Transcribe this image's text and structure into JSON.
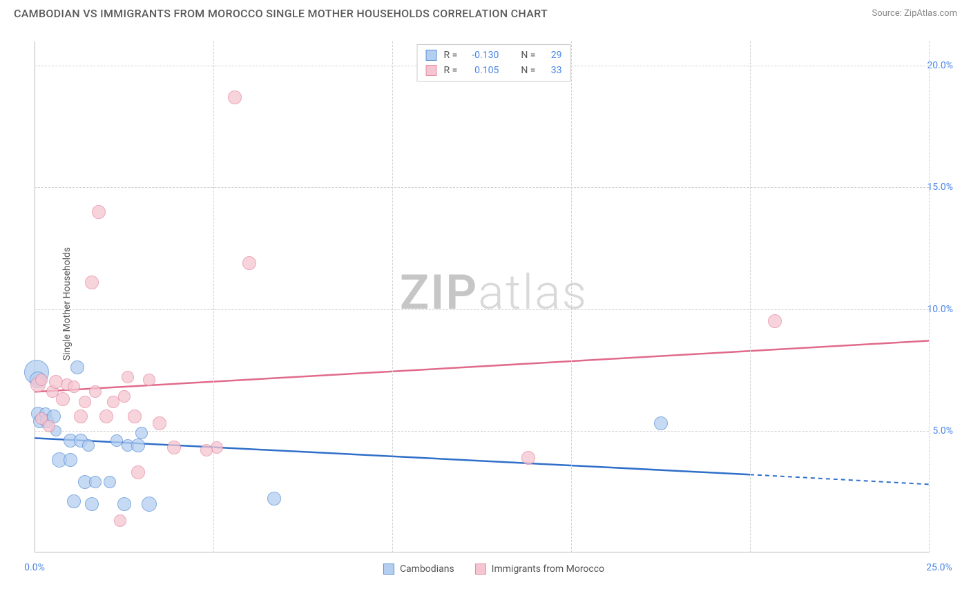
{
  "title": "CAMBODIAN VS IMMIGRANTS FROM MOROCCO SINGLE MOTHER HOUSEHOLDS CORRELATION CHART",
  "source": "Source: ZipAtlas.com",
  "watermark_zip": "ZIP",
  "watermark_atlas": "atlas",
  "y_axis_label": "Single Mother Households",
  "chart": {
    "type": "scatter",
    "background_color": "#ffffff",
    "grid_color": "#d0d0d0",
    "axis_color": "#bbbbbb",
    "tick_label_color": "#4a86e8",
    "xlim": [
      0,
      25
    ],
    "ylim": [
      0,
      21
    ],
    "x_ticks": [
      0,
      5,
      10,
      15,
      20,
      25
    ],
    "x_tick_labels": [
      "0.0%",
      "",
      "",
      "",
      "",
      "25.0%"
    ],
    "y_ticks": [
      5,
      10,
      15,
      20
    ],
    "y_tick_labels": [
      "5.0%",
      "10.0%",
      "15.0%",
      "20.0%"
    ],
    "x_grid_positions": [
      5,
      10,
      15,
      20,
      25
    ],
    "point_radius_min": 8,
    "point_radius_max": 18
  },
  "series": [
    {
      "key": "cambodians",
      "label": "Cambodians",
      "fill_color": "#b4cef0",
      "stroke_color": "#5a8fd6",
      "line_color": "#2f6fc9",
      "R": "-0.130",
      "N": "29",
      "trend": {
        "x1": 0,
        "y1": 4.7,
        "x2": 20,
        "y2": 3.2,
        "dash_extend_x": 25,
        "dash_extend_y": 2.8
      },
      "points": [
        {
          "x": 0.05,
          "y": 7.4,
          "r": 18
        },
        {
          "x": 0.1,
          "y": 7.1,
          "r": 12
        },
        {
          "x": 0.1,
          "y": 5.7,
          "r": 10
        },
        {
          "x": 0.15,
          "y": 5.4,
          "r": 10
        },
        {
          "x": 0.3,
          "y": 5.7,
          "r": 9
        },
        {
          "x": 0.35,
          "y": 5.4,
          "r": 10
        },
        {
          "x": 0.55,
          "y": 5.6,
          "r": 10
        },
        {
          "x": 0.6,
          "y": 5.0,
          "r": 8
        },
        {
          "x": 1.2,
          "y": 7.6,
          "r": 10
        },
        {
          "x": 1.0,
          "y": 4.6,
          "r": 10
        },
        {
          "x": 1.3,
          "y": 4.6,
          "r": 10
        },
        {
          "x": 1.5,
          "y": 4.4,
          "r": 9
        },
        {
          "x": 0.7,
          "y": 3.8,
          "r": 11
        },
        {
          "x": 1.0,
          "y": 3.8,
          "r": 10
        },
        {
          "x": 1.4,
          "y": 2.9,
          "r": 10
        },
        {
          "x": 1.7,
          "y": 2.9,
          "r": 9
        },
        {
          "x": 2.1,
          "y": 2.9,
          "r": 9
        },
        {
          "x": 1.1,
          "y": 2.1,
          "r": 10
        },
        {
          "x": 1.6,
          "y": 2.0,
          "r": 10
        },
        {
          "x": 2.5,
          "y": 2.0,
          "r": 10
        },
        {
          "x": 2.3,
          "y": 4.6,
          "r": 9
        },
        {
          "x": 2.6,
          "y": 4.4,
          "r": 9
        },
        {
          "x": 2.9,
          "y": 4.4,
          "r": 10
        },
        {
          "x": 3.2,
          "y": 2.0,
          "r": 11
        },
        {
          "x": 3.0,
          "y": 4.9,
          "r": 9
        },
        {
          "x": 6.7,
          "y": 2.2,
          "r": 10
        },
        {
          "x": 17.5,
          "y": 5.3,
          "r": 10
        }
      ]
    },
    {
      "key": "morocco",
      "label": "Immigrants from Morocco",
      "fill_color": "#f5c6d1",
      "stroke_color": "#e58aa3",
      "line_color": "#e06a8a",
      "R": "0.105",
      "N": "33",
      "trend": {
        "x1": 0,
        "y1": 6.6,
        "x2": 25,
        "y2": 8.7
      },
      "points": [
        {
          "x": 0.1,
          "y": 6.9,
          "r": 11
        },
        {
          "x": 0.2,
          "y": 7.1,
          "r": 9
        },
        {
          "x": 0.2,
          "y": 5.5,
          "r": 9
        },
        {
          "x": 0.4,
          "y": 5.2,
          "r": 9
        },
        {
          "x": 0.5,
          "y": 6.6,
          "r": 9
        },
        {
          "x": 0.6,
          "y": 7.0,
          "r": 10
        },
        {
          "x": 0.8,
          "y": 6.3,
          "r": 10
        },
        {
          "x": 0.9,
          "y": 6.9,
          "r": 9
        },
        {
          "x": 1.1,
          "y": 6.8,
          "r": 9
        },
        {
          "x": 1.3,
          "y": 5.6,
          "r": 10
        },
        {
          "x": 1.4,
          "y": 6.2,
          "r": 9
        },
        {
          "x": 1.7,
          "y": 6.6,
          "r": 9
        },
        {
          "x": 2.0,
          "y": 5.6,
          "r": 10
        },
        {
          "x": 2.2,
          "y": 6.2,
          "r": 9
        },
        {
          "x": 2.6,
          "y": 7.2,
          "r": 9
        },
        {
          "x": 2.5,
          "y": 6.4,
          "r": 9
        },
        {
          "x": 2.8,
          "y": 5.6,
          "r": 10
        },
        {
          "x": 3.2,
          "y": 7.1,
          "r": 9
        },
        {
          "x": 3.5,
          "y": 5.3,
          "r": 10
        },
        {
          "x": 3.9,
          "y": 4.3,
          "r": 10
        },
        {
          "x": 5.1,
          "y": 4.3,
          "r": 9
        },
        {
          "x": 2.4,
          "y": 1.3,
          "r": 9
        },
        {
          "x": 2.9,
          "y": 3.3,
          "r": 10
        },
        {
          "x": 4.8,
          "y": 4.2,
          "r": 9
        },
        {
          "x": 1.6,
          "y": 11.1,
          "r": 10
        },
        {
          "x": 1.8,
          "y": 14.0,
          "r": 10
        },
        {
          "x": 5.6,
          "y": 18.7,
          "r": 10
        },
        {
          "x": 6.0,
          "y": 11.9,
          "r": 10
        },
        {
          "x": 13.8,
          "y": 3.9,
          "r": 10
        },
        {
          "x": 20.7,
          "y": 9.5,
          "r": 10
        }
      ]
    }
  ],
  "stats_box": {
    "r_label": "R =",
    "n_label": "N ="
  },
  "bottom_legend_labels": [
    "Cambodians",
    "Immigrants from Morocco"
  ]
}
